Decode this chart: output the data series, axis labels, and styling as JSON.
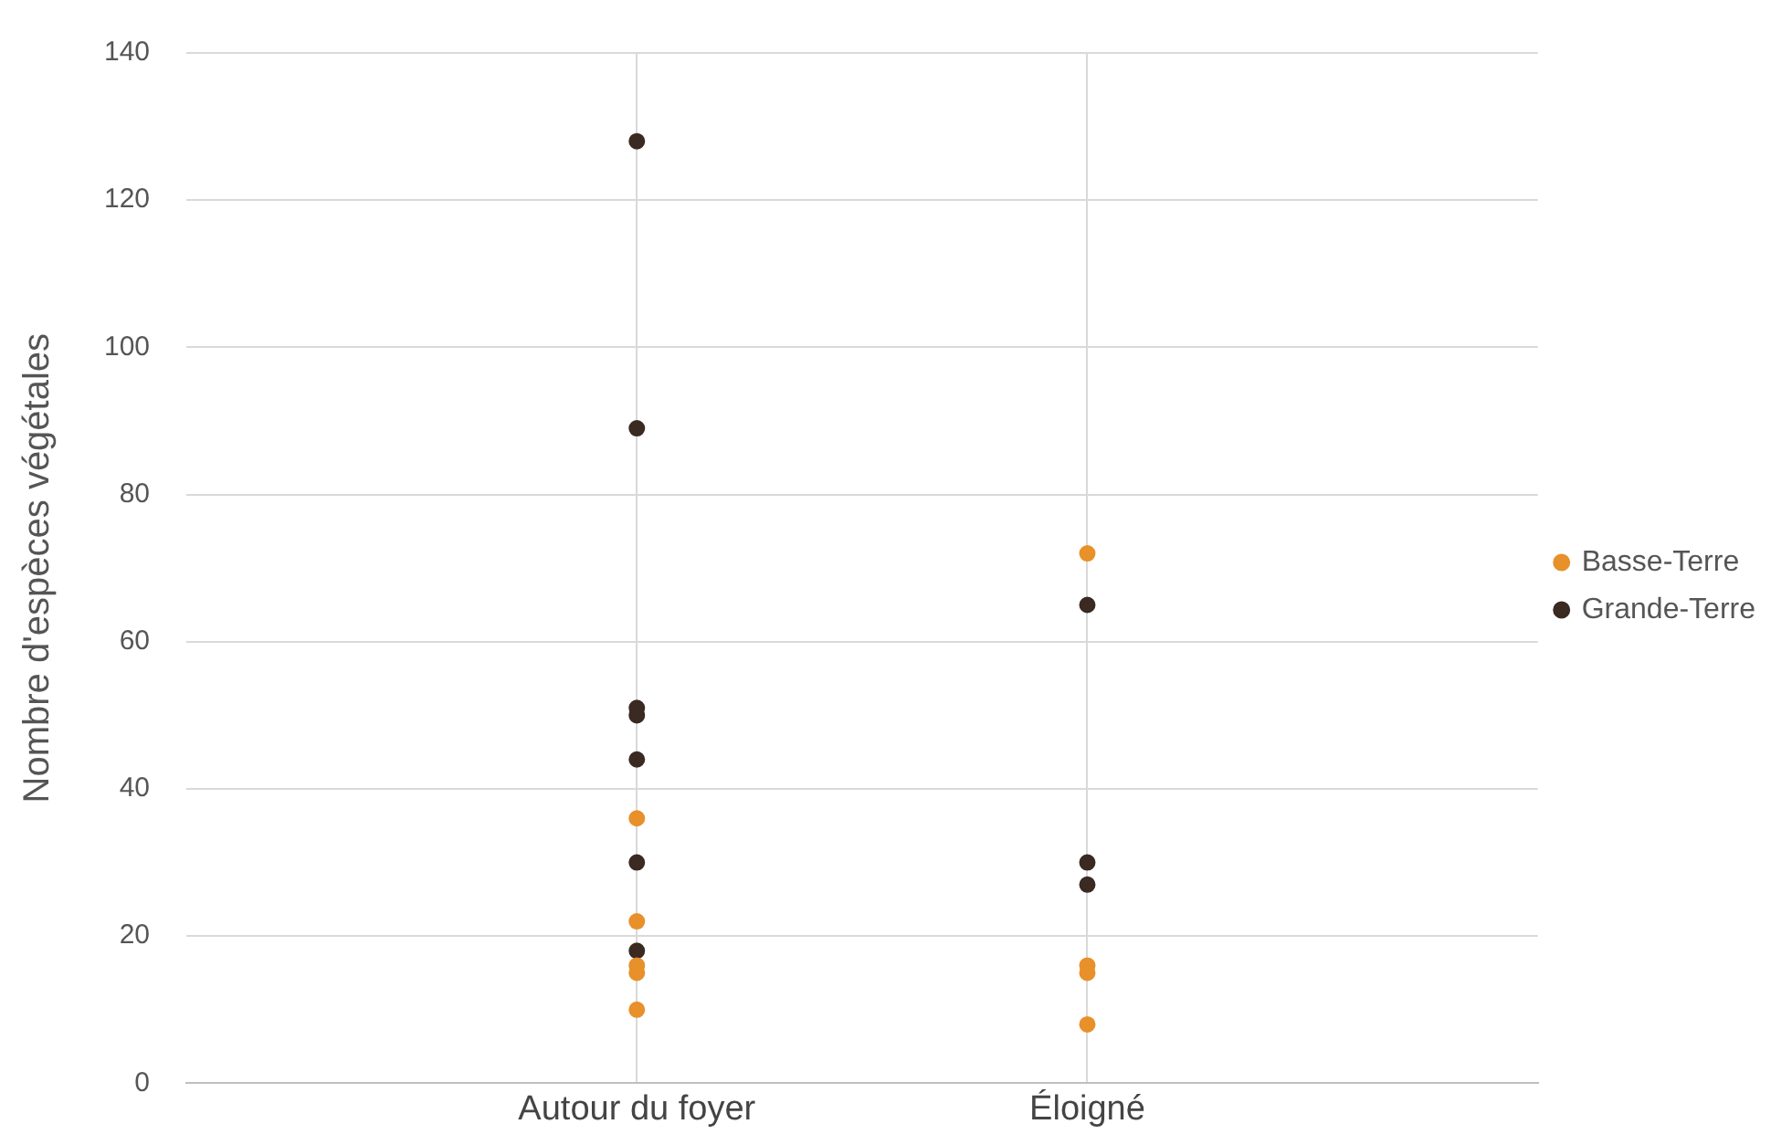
{
  "chart_data": {
    "type": "scatter",
    "ylabel": "Nombre d'espèces végétales",
    "categories": [
      "Autour du foyer",
      "Éloigné"
    ],
    "series": [
      {
        "name": "Basse-Terre",
        "color": "#e8902a",
        "x": [
          "Autour du foyer",
          "Autour du foyer",
          "Autour du foyer",
          "Autour du foyer",
          "Autour du foyer",
          "Éloigné",
          "Éloigné",
          "Éloigné",
          "Éloigné"
        ],
        "values": [
          36,
          22,
          16,
          15,
          10,
          72,
          16,
          15,
          8
        ]
      },
      {
        "name": "Grande-Terre",
        "color": "#3a2a22",
        "x": [
          "Autour du foyer",
          "Autour du foyer",
          "Autour du foyer",
          "Autour du foyer",
          "Autour du foyer",
          "Autour du foyer",
          "Autour du foyer",
          "Éloigné",
          "Éloigné",
          "Éloigné"
        ],
        "values": [
          128,
          89,
          51,
          50,
          44,
          30,
          18,
          65,
          30,
          27
        ]
      }
    ],
    "ylim": [
      0,
      140
    ],
    "yticks": [
      0,
      20,
      40,
      60,
      80,
      100,
      120,
      140
    ],
    "grid": true,
    "legend": "right",
    "marker": "circle"
  }
}
